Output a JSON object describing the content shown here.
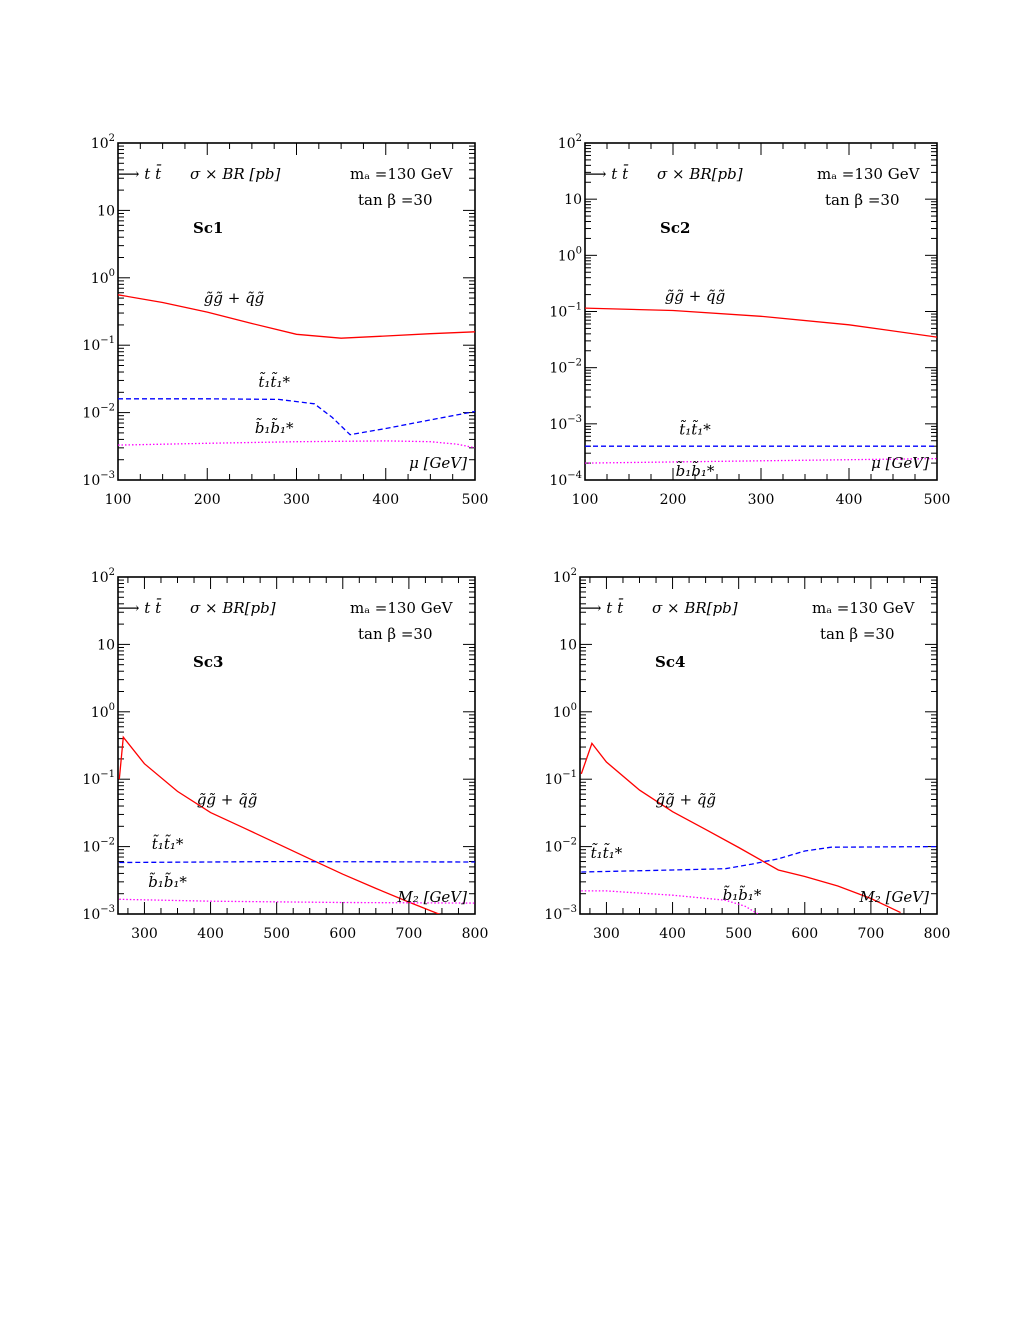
{
  "chart_data": [
    {
      "type": "line",
      "panel": "Sc1",
      "scenario_label": "Sc1",
      "channel_label": "⟶ t t̄",
      "quantity_label": "σ × BR [pb]",
      "mass_label": "mₐ =130 GeV",
      "tanb_label": "tan β =30",
      "xlabel": "μ [GeV]",
      "xlim": [
        100,
        500
      ],
      "xticks": [
        100,
        200,
        300,
        400,
        500
      ],
      "ylim_log10": [
        -3,
        2
      ],
      "yticks": [
        {
          "value": 100,
          "mant": "10",
          "exp": "2"
        },
        {
          "value": 10,
          "mant": "10",
          "exp": ""
        },
        {
          "value": 1,
          "mant": "10",
          "exp": "0"
        },
        {
          "value": 0.1,
          "mant": "10",
          "exp": "−1"
        },
        {
          "value": 0.01,
          "mant": "10",
          "exp": "−2"
        },
        {
          "value": 0.001,
          "mant": "10",
          "exp": "−3"
        }
      ],
      "series": [
        {
          "name": "g̃g̃ + q̃g̃",
          "color": "#ff0000",
          "dash": "",
          "x": [
            100,
            150,
            200,
            250,
            300,
            350,
            400,
            450,
            500
          ],
          "y": [
            0.56,
            0.43,
            0.31,
            0.21,
            0.145,
            0.127,
            0.137,
            0.148,
            0.158
          ]
        },
        {
          "name": "t̃₁t̃₁*",
          "color": "#0000ff",
          "dash": "5,3",
          "x": [
            100,
            200,
            280,
            320,
            340,
            360,
            400,
            450,
            500
          ],
          "y": [
            0.016,
            0.016,
            0.0157,
            0.0135,
            0.0085,
            0.0047,
            0.0058,
            0.0078,
            0.0104
          ]
        },
        {
          "name": "b̃₁b̃₁*",
          "color": "#ff00ff",
          "dash": "1.5,2",
          "x": [
            100,
            200,
            300,
            400,
            450,
            480,
            500
          ],
          "y": [
            0.0033,
            0.0035,
            0.0037,
            0.0038,
            0.0037,
            0.0034,
            0.003
          ]
        }
      ],
      "labels": [
        {
          "text": "g̃g̃ + q̃g̃",
          "x": 230,
          "y": 0.42
        },
        {
          "text": "t̃₁t̃₁*",
          "x": 275,
          "y": 0.024
        },
        {
          "text": "b̃₁b̃₁*",
          "x": 275,
          "y": 0.005
        }
      ]
    },
    {
      "type": "line",
      "panel": "Sc2",
      "scenario_label": "Sc2",
      "channel_label": "⟶ t t̄",
      "quantity_label": "σ × BR[pb]",
      "mass_label": "mₐ =130 GeV",
      "tanb_label": "tan β =30",
      "xlabel": "μ [GeV]",
      "xlim": [
        100,
        500
      ],
      "xticks": [
        100,
        200,
        300,
        400,
        500
      ],
      "ylim_log10": [
        -4,
        2
      ],
      "yticks": [
        {
          "value": 100,
          "mant": "10",
          "exp": "2"
        },
        {
          "value": 10,
          "mant": "10",
          "exp": ""
        },
        {
          "value": 1,
          "mant": "10",
          "exp": "0"
        },
        {
          "value": 0.1,
          "mant": "10",
          "exp": "−1"
        },
        {
          "value": 0.01,
          "mant": "10",
          "exp": "−2"
        },
        {
          "value": 0.001,
          "mant": "10",
          "exp": "−3"
        },
        {
          "value": 0.0001,
          "mant": "10",
          "exp": "−4"
        }
      ],
      "series": [
        {
          "name": "g̃g̃ + q̃g̃",
          "color": "#ff0000",
          "dash": "",
          "x": [
            100,
            200,
            300,
            400,
            500
          ],
          "y": [
            0.115,
            0.104,
            0.082,
            0.058,
            0.035
          ]
        },
        {
          "name": "t̃₁t̃₁*",
          "color": "#0000ff",
          "dash": "5,3",
          "x": [
            100,
            500
          ],
          "y": [
            0.0004,
            0.0004
          ]
        },
        {
          "name": "b̃₁b̃₁*",
          "color": "#ff00ff",
          "dash": "1.5,2",
          "x": [
            100,
            300,
            500
          ],
          "y": [
            0.0002,
            0.00022,
            0.00024
          ]
        }
      ],
      "labels": [
        {
          "text": "g̃g̃ + q̃g̃",
          "x": 225,
          "y": 0.155
        },
        {
          "text": "t̃₁t̃₁*",
          "x": 225,
          "y": 0.00064
        },
        {
          "text": "b̃₁b̃₁*",
          "x": 225,
          "y": 0.000118
        }
      ]
    },
    {
      "type": "line",
      "panel": "Sc3",
      "scenario_label": "Sc3",
      "channel_label": "⟶ t t̄",
      "quantity_label": "σ × BR[pb]",
      "mass_label": "mₐ =130 GeV",
      "tanb_label": "tan β =30",
      "xlabel": "M₂ [GeV]",
      "xlim": [
        260,
        800
      ],
      "xticks": [
        300,
        400,
        500,
        600,
        700,
        800
      ],
      "ylim_log10": [
        -3,
        2
      ],
      "yticks": [
        {
          "value": 100,
          "mant": "10",
          "exp": "2"
        },
        {
          "value": 10,
          "mant": "10",
          "exp": ""
        },
        {
          "value": 1,
          "mant": "10",
          "exp": "0"
        },
        {
          "value": 0.1,
          "mant": "10",
          "exp": "−1"
        },
        {
          "value": 0.01,
          "mant": "10",
          "exp": "−2"
        },
        {
          "value": 0.001,
          "mant": "10",
          "exp": "−3"
        }
      ],
      "series": [
        {
          "name": "g̃g̃ + q̃g̃",
          "color": "#ff0000",
          "dash": "",
          "x": [
            262,
            268,
            300,
            350,
            400,
            450,
            500,
            550,
            600,
            650,
            700,
            757
          ],
          "y": [
            0.1,
            0.42,
            0.17,
            0.066,
            0.032,
            0.019,
            0.0112,
            0.0066,
            0.0039,
            0.0024,
            0.0015,
            0.0009
          ]
        },
        {
          "name": "t̃₁t̃₁*",
          "color": "#0000ff",
          "dash": "5,3",
          "x": [
            262,
            500,
            800
          ],
          "y": [
            0.0058,
            0.006,
            0.0059
          ]
        },
        {
          "name": "b̃₁b̃₁*",
          "color": "#ff00ff",
          "dash": "1.5,2",
          "x": [
            262,
            400,
            600,
            800
          ],
          "y": [
            0.00165,
            0.00155,
            0.00148,
            0.00145
          ]
        }
      ],
      "labels": [
        {
          "text": "g̃g̃ + q̃g̃",
          "x": 425,
          "y": 0.042
        },
        {
          "text": "t̃₁t̃₁*",
          "x": 335,
          "y": 0.0092
        },
        {
          "text": "b̃₁b̃₁*",
          "x": 335,
          "y": 0.0025
        }
      ]
    },
    {
      "type": "line",
      "panel": "Sc4",
      "scenario_label": "Sc4",
      "channel_label": "⟶ t t̄",
      "quantity_label": "σ × BR[pb]",
      "mass_label": "mₐ =130 GeV",
      "tanb_label": "tan β =30",
      "xlabel": "M₂ [GeV]",
      "xlim": [
        260,
        800
      ],
      "xticks": [
        300,
        400,
        500,
        600,
        700,
        800
      ],
      "ylim_log10": [
        -3,
        2
      ],
      "yticks": [
        {
          "value": 100,
          "mant": "10",
          "exp": "2"
        },
        {
          "value": 10,
          "mant": "10",
          "exp": ""
        },
        {
          "value": 1,
          "mant": "10",
          "exp": "0"
        },
        {
          "value": 0.1,
          "mant": "10",
          "exp": "−1"
        },
        {
          "value": 0.01,
          "mant": "10",
          "exp": "−2"
        },
        {
          "value": 0.001,
          "mant": "10",
          "exp": "−3"
        }
      ],
      "series": [
        {
          "name": "g̃g̃ + q̃g̃",
          "color": "#ff0000",
          "dash": "",
          "x": [
            262,
            278,
            300,
            350,
            400,
            450,
            500,
            560,
            600,
            650,
            700,
            745
          ],
          "y": [
            0.12,
            0.34,
            0.18,
            0.069,
            0.033,
            0.018,
            0.0097,
            0.0045,
            0.0036,
            0.0026,
            0.0017,
            0.00105
          ]
        },
        {
          "name": "t̃₁t̃₁*",
          "color": "#0000ff",
          "dash": "5,3",
          "x": [
            262,
            400,
            480,
            520,
            560,
            600,
            640,
            800
          ],
          "y": [
            0.0042,
            0.0045,
            0.0047,
            0.0055,
            0.0066,
            0.0086,
            0.0098,
            0.01
          ]
        },
        {
          "name": "b̃₁b̃₁*",
          "color": "#ff00ff",
          "dash": "1.5,2",
          "x": [
            262,
            300,
            400,
            480,
            510,
            530
          ],
          "y": [
            0.0022,
            0.0022,
            0.0019,
            0.0016,
            0.0013,
            0.00099
          ]
        }
      ],
      "labels": [
        {
          "text": "g̃g̃ + q̃g̃",
          "x": 420,
          "y": 0.042
        },
        {
          "text": "t̃₁t̃₁*",
          "x": 300,
          "y": 0.0068
        },
        {
          "text": "b̃₁b̃₁*",
          "x": 505,
          "y": 0.0016
        }
      ]
    }
  ]
}
